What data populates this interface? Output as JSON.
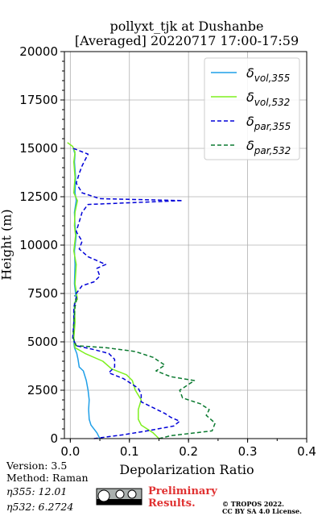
{
  "chart_data": {
    "type": "line",
    "title_line1": "pollyxt_tjk at Dushanbe",
    "title_line2": "[Averaged] 20220717 17:00-17:59",
    "xlabel": "Depolarization Ratio",
    "ylabel": "Height (m)",
    "xlim": [
      -0.01,
      0.4
    ],
    "ylim": [
      0,
      20000
    ],
    "xticks": [
      0.0,
      0.1,
      0.2,
      0.3,
      0.4
    ],
    "xtick_labels": [
      "0.0",
      "0.1",
      "0.2",
      "0.3",
      "0.4"
    ],
    "yticks": [
      0,
      2500,
      5000,
      7500,
      10000,
      12500,
      15000,
      17500,
      20000
    ],
    "ytick_labels": [
      "0",
      "2500",
      "5000",
      "7500",
      "10000",
      "12500",
      "15000",
      "17500",
      "20000"
    ],
    "grid": true,
    "legend_position": "top-right",
    "series": [
      {
        "id": "vol355",
        "legend_base": "δ",
        "legend_sub": "vol,355",
        "color": "#1f9fe8",
        "dash": "solid",
        "points": [
          [
            0.05,
            0
          ],
          [
            0.045,
            300
          ],
          [
            0.035,
            700
          ],
          [
            0.032,
            1000
          ],
          [
            0.031,
            1500
          ],
          [
            0.032,
            2000
          ],
          [
            0.03,
            2500
          ],
          [
            0.027,
            3000
          ],
          [
            0.022,
            3500
          ],
          [
            0.015,
            3700
          ],
          [
            0.013,
            4100
          ],
          [
            0.011,
            4400
          ],
          [
            0.007,
            4700
          ],
          [
            0.006,
            5000
          ],
          [
            0.006,
            6000
          ],
          [
            0.007,
            7000
          ],
          [
            0.01,
            7200
          ],
          [
            0.007,
            8000
          ],
          [
            0.008,
            9000
          ],
          [
            0.007,
            9700
          ],
          [
            0.01,
            10500
          ],
          [
            0.008,
            11000
          ],
          [
            0.007,
            11700
          ],
          [
            0.01,
            12300
          ],
          [
            0.008,
            12700
          ],
          [
            0.009,
            13500
          ],
          [
            0.007,
            14300
          ],
          [
            0.008,
            14700
          ],
          [
            0.005,
            15000
          ]
        ]
      },
      {
        "id": "vol532",
        "legend_base": "δ",
        "legend_sub": "vol,532",
        "color": "#7ef01f",
        "dash": "solid",
        "points": [
          [
            0.15,
            0
          ],
          [
            0.14,
            300
          ],
          [
            0.12,
            700
          ],
          [
            0.115,
            1000
          ],
          [
            0.115,
            1500
          ],
          [
            0.12,
            2000
          ],
          [
            0.11,
            2500
          ],
          [
            0.105,
            3000
          ],
          [
            0.095,
            3300
          ],
          [
            0.07,
            3600
          ],
          [
            0.055,
            4000
          ],
          [
            0.025,
            4400
          ],
          [
            0.008,
            4700
          ],
          [
            0.006,
            5200
          ],
          [
            0.008,
            6000
          ],
          [
            0.007,
            7000
          ],
          [
            0.012,
            7200
          ],
          [
            0.008,
            8000
          ],
          [
            0.01,
            9000
          ],
          [
            0.006,
            9700
          ],
          [
            0.009,
            10500
          ],
          [
            0.007,
            11000
          ],
          [
            0.008,
            11700
          ],
          [
            0.012,
            12300
          ],
          [
            0.006,
            12700
          ],
          [
            0.008,
            13500
          ],
          [
            0.006,
            14300
          ],
          [
            0.008,
            14800
          ],
          [
            0.004,
            15100
          ],
          [
            -0.005,
            15300
          ]
        ]
      },
      {
        "id": "par355",
        "legend_base": "δ",
        "legend_sub": "par,355",
        "color": "#0000d8",
        "dash": "5,3",
        "points": [
          [
            0.04,
            0
          ],
          [
            0.09,
            200
          ],
          [
            0.13,
            400
          ],
          [
            0.175,
            650
          ],
          [
            0.185,
            900
          ],
          [
            0.17,
            1100
          ],
          [
            0.16,
            1300
          ],
          [
            0.14,
            1600
          ],
          [
            0.12,
            1900
          ],
          [
            0.12,
            2300
          ],
          [
            0.115,
            2600
          ],
          [
            0.1,
            2900
          ],
          [
            0.09,
            3100
          ],
          [
            0.065,
            3400
          ],
          [
            0.075,
            3700
          ],
          [
            0.075,
            4100
          ],
          [
            0.065,
            4400
          ],
          [
            0.04,
            4600
          ],
          [
            0.01,
            4800
          ],
          [
            0.004,
            5200
          ],
          [
            0.006,
            6000
          ],
          [
            0.006,
            6800
          ],
          [
            0.01,
            7200
          ],
          [
            0.01,
            7500
          ],
          [
            0.02,
            7900
          ],
          [
            0.04,
            8100
          ],
          [
            0.05,
            8400
          ],
          [
            0.045,
            8800
          ],
          [
            0.06,
            9000
          ],
          [
            0.03,
            9400
          ],
          [
            0.015,
            9800
          ],
          [
            0.02,
            10200
          ],
          [
            0.01,
            10700
          ],
          [
            0.015,
            11200
          ],
          [
            0.02,
            11700
          ],
          [
            0.03,
            12100
          ],
          [
            0.19,
            12300
          ],
          [
            0.05,
            12400
          ],
          [
            0.02,
            12700
          ],
          [
            0.01,
            13200
          ],
          [
            0.015,
            13700
          ],
          [
            0.02,
            14100
          ],
          [
            0.03,
            14700
          ],
          [
            0.005,
            15000
          ]
        ]
      },
      {
        "id": "par532",
        "legend_base": "δ",
        "legend_sub": "par,532",
        "color": "#0b7a30",
        "dash": "5,3",
        "points": [
          [
            0.15,
            0
          ],
          [
            0.17,
            150
          ],
          [
            0.24,
            400
          ],
          [
            0.245,
            800
          ],
          [
            0.23,
            1200
          ],
          [
            0.235,
            1500
          ],
          [
            0.22,
            1800
          ],
          [
            0.19,
            2100
          ],
          [
            0.185,
            2500
          ],
          [
            0.2,
            2800
          ],
          [
            0.21,
            3000
          ],
          [
            0.17,
            3200
          ],
          [
            0.145,
            3500
          ],
          [
            0.16,
            3800
          ],
          [
            0.14,
            4200
          ],
          [
            0.11,
            4500
          ],
          [
            0.06,
            4700
          ],
          [
            0.01,
            4800
          ],
          [
            0.005,
            5200
          ],
          [
            0.006,
            6000
          ],
          [
            0.008,
            6800
          ],
          [
            0.01,
            7100
          ],
          [
            0.007,
            7400
          ]
        ]
      }
    ]
  },
  "info": {
    "version": "Version: 3.5",
    "method": "Method: Raman",
    "eta355_label": "η355:  12.01",
    "eta532_label": "η532: 6.2724"
  },
  "footer": {
    "preliminary_line1": "Preliminary",
    "preliminary_line2": "Results.",
    "copyright_line1": "© TROPOS 2022.",
    "copyright_line2": "CC BY SA 4.0 License.",
    "license_badge": "cc-by-sa",
    "preliminary_color": "#e03030"
  }
}
